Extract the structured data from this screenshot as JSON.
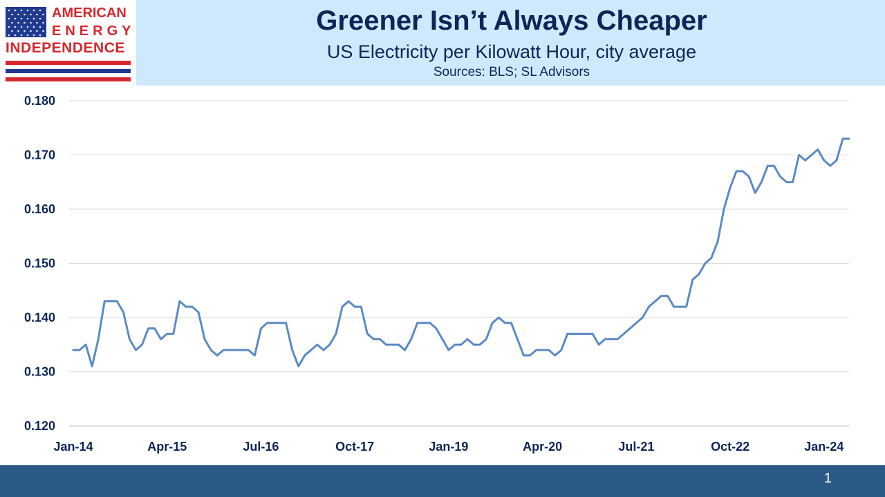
{
  "logo": {
    "line1": "AMERICAN",
    "line2": "ENERGY",
    "line3": "INDEPENDENCE",
    "colors": {
      "red": "#d8262e",
      "blue": "#1f3a8f"
    }
  },
  "header": {
    "title": "Greener Isn’t Always Cheaper",
    "subtitle": "US Electricity per Kilowatt Hour, city average",
    "sources": "Sources: BLS; SL Advisors"
  },
  "footer": {
    "page_number": "1"
  },
  "chart_data": {
    "type": "line",
    "title": "Greener Isn’t Always Cheaper",
    "subtitle": "US Electricity per Kilowatt Hour, city average",
    "xlabel": "",
    "ylabel": "",
    "ylim": [
      0.12,
      0.18
    ],
    "y_ticks": [
      "0.120",
      "0.130",
      "0.140",
      "0.150",
      "0.160",
      "0.170",
      "0.180"
    ],
    "x_ticks": [
      {
        "label": "Jan-14",
        "index": 0
      },
      {
        "label": "Apr-15",
        "index": 15
      },
      {
        "label": "Jul-16",
        "index": 30
      },
      {
        "label": "Oct-17",
        "index": 45
      },
      {
        "label": "Jan-19",
        "index": 60
      },
      {
        "label": "Apr-20",
        "index": 75
      },
      {
        "label": "Jul-21",
        "index": 90
      },
      {
        "label": "Oct-22",
        "index": 105
      },
      {
        "label": "Jan-24",
        "index": 120
      }
    ],
    "grid": true,
    "line_color": "#5b8ac4",
    "series": [
      {
        "values": [
          0.134,
          0.134,
          0.135,
          0.131,
          0.136,
          0.143,
          0.143,
          0.143,
          0.141,
          0.136,
          0.134,
          0.135,
          0.138,
          0.138,
          0.136,
          0.137,
          0.137,
          0.143,
          0.142,
          0.142,
          0.141,
          0.136,
          0.134,
          0.133,
          0.134,
          0.134,
          0.134,
          0.134,
          0.134,
          0.133,
          0.138,
          0.139,
          0.139,
          0.139,
          0.139,
          0.134,
          0.131,
          0.133,
          0.134,
          0.135,
          0.134,
          0.135,
          0.137,
          0.142,
          0.143,
          0.142,
          0.142,
          0.137,
          0.136,
          0.136,
          0.135,
          0.135,
          0.135,
          0.134,
          0.136,
          0.139,
          0.139,
          0.139,
          0.138,
          0.136,
          0.134,
          0.135,
          0.135,
          0.136,
          0.135,
          0.135,
          0.136,
          0.139,
          0.14,
          0.139,
          0.139,
          0.136,
          0.133,
          0.133,
          0.134,
          0.134,
          0.134,
          0.133,
          0.134,
          0.137,
          0.137,
          0.137,
          0.137,
          0.137,
          0.135,
          0.136,
          0.136,
          0.136,
          0.137,
          0.138,
          0.139,
          0.14,
          0.142,
          0.143,
          0.144,
          0.144,
          0.142,
          0.142,
          0.142,
          0.147,
          0.148,
          0.15,
          0.151,
          0.154,
          0.16,
          0.164,
          0.167,
          0.167,
          0.166,
          0.163,
          0.165,
          0.168,
          0.168,
          0.166,
          0.165,
          0.165,
          0.17,
          0.169,
          0.17,
          0.171,
          0.169,
          0.168,
          0.169,
          0.173,
          0.173
        ]
      }
    ]
  }
}
